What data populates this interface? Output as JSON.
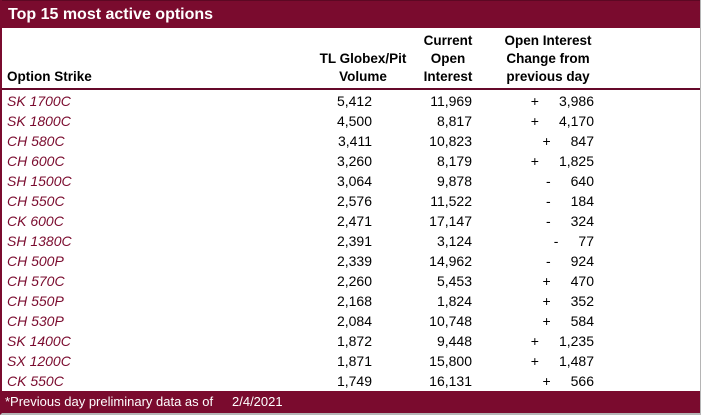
{
  "title": "Top 15 most active options",
  "colors": {
    "maroon": "#7a0b2e",
    "header_rule": "#65092a",
    "text": "#000000",
    "bar_text": "#ffffff"
  },
  "table": {
    "headers": {
      "strike": "Option Strike",
      "volume": [
        "TL Globex/Pit",
        "Volume"
      ],
      "open_interest": [
        "Current",
        "Open",
        "Interest"
      ],
      "change": [
        "Open Interest",
        "Change from",
        "previous day"
      ]
    },
    "rows": [
      {
        "strike": "SK 1700C",
        "volume": "5,412",
        "open_interest": "11,969",
        "change_sign": "+",
        "change_value": "3,986"
      },
      {
        "strike": "SK 1800C",
        "volume": "4,500",
        "open_interest": "8,817",
        "change_sign": "+",
        "change_value": "4,170"
      },
      {
        "strike": "CH 580C",
        "volume": "3,411",
        "open_interest": "10,823",
        "change_sign": "+",
        "change_value": "847"
      },
      {
        "strike": "CH 600C",
        "volume": "3,260",
        "open_interest": "8,179",
        "change_sign": "+",
        "change_value": "1,825"
      },
      {
        "strike": "SH 1500C",
        "volume": "3,064",
        "open_interest": "9,878",
        "change_sign": "-",
        "change_value": "640"
      },
      {
        "strike": "CH 550C",
        "volume": "2,576",
        "open_interest": "11,522",
        "change_sign": "-",
        "change_value": "184"
      },
      {
        "strike": "CK 600C",
        "volume": "2,471",
        "open_interest": "17,147",
        "change_sign": "-",
        "change_value": "324"
      },
      {
        "strike": "SH 1380C",
        "volume": "2,391",
        "open_interest": "3,124",
        "change_sign": "-",
        "change_value": "77"
      },
      {
        "strike": "CH 500P",
        "volume": "2,339",
        "open_interest": "14,962",
        "change_sign": "-",
        "change_value": "924"
      },
      {
        "strike": "CH 570C",
        "volume": "2,260",
        "open_interest": "5,453",
        "change_sign": "+",
        "change_value": "470"
      },
      {
        "strike": "CH 550P",
        "volume": "2,168",
        "open_interest": "1,824",
        "change_sign": "+",
        "change_value": "352"
      },
      {
        "strike": "CH 530P",
        "volume": "2,084",
        "open_interest": "10,748",
        "change_sign": "+",
        "change_value": "584"
      },
      {
        "strike": "SK 1400C",
        "volume": "1,872",
        "open_interest": "9,448",
        "change_sign": "+",
        "change_value": "1,235"
      },
      {
        "strike": "SX 1200C",
        "volume": "1,871",
        "open_interest": "15,800",
        "change_sign": "+",
        "change_value": "1,487"
      },
      {
        "strike": "CK 550C",
        "volume": "1,749",
        "open_interest": "16,131",
        "change_sign": "+",
        "change_value": "566"
      }
    ]
  },
  "footer": {
    "note": "*Previous day preliminary data as of",
    "date": "2/4/2021"
  }
}
